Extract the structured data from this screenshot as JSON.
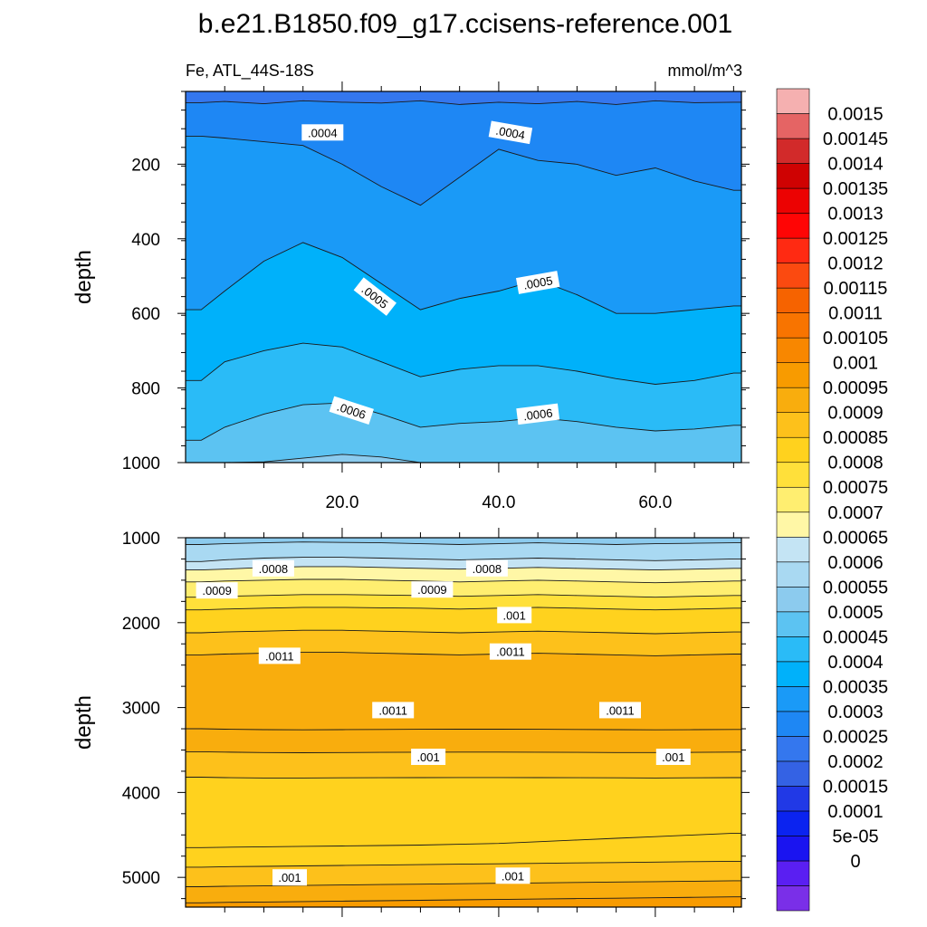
{
  "figure": {
    "title": "b.e21.B1850.f09_g17.ccisens-reference.001",
    "left_label": "Fe, ATL_44S-18S",
    "right_label": "mmol/m^3"
  },
  "colors": {
    "fill": [
      "#7a2fe8",
      "#5a1ff2",
      "#1a14f0",
      "#0b23f0",
      "#2139e6",
      "#3462e4",
      "#3477ee",
      "#1e87f4",
      "#1a9af7",
      "#00b1fa",
      "#2abbf7",
      "#5cc3f2",
      "#8ccbee",
      "#a9d9f2",
      "#c4e4f4",
      "#fff7a6",
      "#ffee70",
      "#ffe03a",
      "#ffd21e",
      "#fdc11b",
      "#f9ad0d",
      "#f89b00",
      "#f88700",
      "#f87400",
      "#f66300",
      "#fb4a10",
      "#ff2a12",
      "#ff0505",
      "#ec0202",
      "#cf0202",
      "#d22a2a",
      "#e56464",
      "#f5b0b0"
    ],
    "line": "#1a1a1a"
  },
  "chart_data": {
    "type": "heatmap",
    "style": "filled-contour",
    "x": [
      2,
      5,
      10,
      15,
      20,
      25,
      30,
      35,
      40,
      45,
      50,
      55,
      60,
      65,
      70
    ],
    "xlim": [
      0,
      71
    ],
    "colorbar": {
      "levels": [
        0,
        5e-05,
        0.0001,
        0.00015,
        0.0002,
        0.00025,
        0.0003,
        0.00035,
        0.0004,
        0.00045,
        0.0005,
        0.00055,
        0.0006,
        0.00065,
        0.0007,
        0.00075,
        0.0008,
        0.00085,
        0.0009,
        0.00095,
        0.001,
        0.00105,
        0.0011,
        0.00115,
        0.0012,
        0.00125,
        0.0013,
        0.00135,
        0.0014,
        0.00145,
        0.0015
      ],
      "labels": [
        "0.0015",
        "0.00145",
        "0.0014",
        "0.00135",
        "0.0013",
        "0.00125",
        "0.0012",
        "0.00115",
        "0.0011",
        "0.00105",
        "0.001",
        "0.00095",
        "0.0009",
        "0.00085",
        "0.0008",
        "0.00075",
        "0.0007",
        "0.00065",
        "0.0006",
        "0.00055",
        "0.0005",
        "0.00045",
        "0.0004",
        "0.00035",
        "0.0003",
        "0.00025",
        "0.0002",
        "0.00015",
        "0.0001",
        "5e-05",
        "0"
      ]
    },
    "panels": [
      {
        "ylabel": "depth",
        "ylim": [
          5,
          1000
        ],
        "yticks": [
          200,
          400,
          600,
          800,
          1000
        ],
        "xticks": [
          20,
          40,
          60
        ],
        "xtick_labels": [
          "20.0",
          "40.0",
          "60.0"
        ],
        "contours": [
          {
            "level": 0.00035,
            "depth": [
              35,
              32,
              38,
              30,
              34,
              36,
              30,
              40,
              34,
              38,
              32,
              40,
              30,
              35,
              34
            ]
          },
          {
            "level": 0.0004,
            "depth": [
              125,
              130,
              140,
              150,
              200,
              260,
              310,
              235,
              160,
              190,
              200,
              230,
              210,
              245,
              270
            ]
          },
          {
            "level": 0.00045,
            "depth": [
              590,
              540,
              460,
              410,
              450,
              520,
              590,
              560,
              540,
              510,
              550,
              600,
              600,
              590,
              580
            ]
          },
          {
            "level": 0.0005,
            "depth": [
              780,
              730,
              700,
              680,
              690,
              730,
              770,
              750,
              740,
              740,
              755,
              775,
              790,
              780,
              760
            ]
          },
          {
            "level": 0.00055,
            "depth": [
              940,
              905,
              870,
              845,
              840,
              870,
              905,
              895,
              890,
              880,
              890,
              905,
              915,
              910,
              900
            ]
          },
          {
            "level": 0.0006,
            "depth": [
              1000,
              1000,
              998,
              988,
              978,
              985,
              1000,
              1000,
              1000,
              1000,
              1000,
              1000,
              1000,
              1000,
              1000
            ]
          }
        ],
        "labels": [
          {
            "text": ".0004",
            "x": 17.5,
            "depth": 115,
            "angle": 0
          },
          {
            "text": ".0004",
            "x": 41.5,
            "depth": 115,
            "angle": 10
          },
          {
            "text": ".0005",
            "x": 24.2,
            "depth": 555,
            "angle": 38
          },
          {
            "text": ".0005",
            "x": 45.0,
            "depth": 517,
            "angle": -10
          },
          {
            "text": ".0006",
            "x": 21.2,
            "depth": 860,
            "angle": 18
          },
          {
            "text": ".0006",
            "x": 45.0,
            "depth": 870,
            "angle": -7
          }
        ]
      },
      {
        "ylabel": "depth",
        "ylim": [
          1000,
          5350
        ],
        "yticks": [
          1000,
          2000,
          3000,
          4000,
          5000
        ],
        "xticks": [
          20,
          40,
          60
        ],
        "xtick_labels": [],
        "contours": [
          {
            "level": 0.00065,
            "depth": [
              1080,
              1070,
              1060,
              1050,
              1055,
              1060,
              1070,
              1080,
              1070,
              1060,
              1070,
              1080,
              1070,
              1065,
              1060
            ]
          },
          {
            "level": 0.0007,
            "depth": [
              1280,
              1260,
              1240,
              1230,
              1230,
              1240,
              1250,
              1260,
              1250,
              1240,
              1250,
              1260,
              1270,
              1260,
              1250
            ]
          },
          {
            "level": 0.00075,
            "depth": [
              1380,
              1370,
              1350,
              1340,
              1340,
              1350,
              1360,
              1370,
              1360,
              1350,
              1360,
              1370,
              1380,
              1370,
              1360
            ]
          },
          {
            "level": 0.0008,
            "depth": [
              1520,
              1510,
              1500,
              1490,
              1490,
              1500,
              1510,
              1520,
              1510,
              1500,
              1510,
              1520,
              1530,
              1520,
              1510
            ]
          },
          {
            "level": 0.00085,
            "depth": [
              1700,
              1690,
              1680,
              1670,
              1670,
              1675,
              1680,
              1690,
              1680,
              1670,
              1680,
              1690,
              1700,
              1690,
              1680
            ]
          },
          {
            "level": 0.0009,
            "depth": [
              1850,
              1840,
              1830,
              1820,
              1820,
              1825,
              1830,
              1840,
              1830,
              1820,
              1830,
              1840,
              1850,
              1840,
              1830
            ]
          },
          {
            "level": 0.00095,
            "depth": [
              2120,
              2110,
              2100,
              2090,
              2090,
              2100,
              2110,
              2120,
              2110,
              2100,
              2110,
              2120,
              2130,
              2120,
              2110
            ]
          },
          {
            "level": 0.001,
            "depth": [
              2380,
              2370,
              2360,
              2350,
              2350,
              2360,
              2370,
              2380,
              2370,
              2360,
              2370,
              2380,
              2390,
              2380,
              2370
            ]
          },
          {
            "level": 0.00105,
            "depth": [
              3250,
              3255,
              3260,
              3262,
              3260,
              3258,
              3256,
              3255,
              3255,
              3256,
              3258,
              3260,
              3262,
              3260,
              3258
            ]
          },
          {
            "level": 0.001,
            "depth": [
              3520,
              3525,
              3530,
              3532,
              3530,
              3528,
              3526,
              3525,
              3525,
              3526,
              3528,
              3530,
              3530,
              3528,
              3525
            ]
          },
          {
            "level": 0.00095,
            "depth": [
              3820,
              3825,
              3830,
              3830,
              3828,
              3826,
              3825,
              3824,
              3824,
              3825,
              3826,
              3828,
              3830,
              3828,
              3825
            ]
          },
          {
            "level": 0.0009,
            "depth": [
              4650,
              4645,
              4640,
              4635,
              4630,
              4625,
              4620,
              4610,
              4600,
              4580,
              4560,
              4540,
              4520,
              4500,
              4480
            ]
          },
          {
            "level": 0.00095,
            "depth": [
              4880,
              4875,
              4870,
              4865,
              4860,
              4855,
              4850,
              4845,
              4840,
              4835,
              4830,
              4825,
              4820,
              4815,
              4810
            ]
          },
          {
            "level": 0.001,
            "depth": [
              5110,
              5105,
              5100,
              5095,
              5090,
              5085,
              5080,
              5075,
              5070,
              5065,
              5060,
              5055,
              5050,
              5045,
              5040
            ]
          },
          {
            "level": 0.00105,
            "depth": [
              5300,
              5295,
              5290,
              5285,
              5280,
              5275,
              5270,
              5265,
              5260,
              5255,
              5250,
              5245,
              5240,
              5235,
              5230
            ]
          }
        ],
        "labels": [
          {
            "text": ".0008",
            "x": 11.2,
            "depth": 1360,
            "angle": 0
          },
          {
            "text": ".0008",
            "x": 38.5,
            "depth": 1360,
            "angle": 0
          },
          {
            "text": ".0009",
            "x": 4.0,
            "depth": 1620,
            "angle": 0
          },
          {
            "text": ".0009",
            "x": 31.5,
            "depth": 1610,
            "angle": 0
          },
          {
            "text": ".001",
            "x": 42.0,
            "depth": 1910,
            "angle": 0
          },
          {
            "text": ".0011",
            "x": 12.0,
            "depth": 2390,
            "angle": 0
          },
          {
            "text": ".0011",
            "x": 41.5,
            "depth": 2340,
            "angle": 0
          },
          {
            "text": ".0011",
            "x": 26.5,
            "depth": 3030,
            "angle": 0
          },
          {
            "text": ".0011",
            "x": 55.5,
            "depth": 3030,
            "angle": 0
          },
          {
            "text": ".001",
            "x": 31.0,
            "depth": 3580,
            "angle": 0
          },
          {
            "text": ".001",
            "x": 62.3,
            "depth": 3580,
            "angle": 0
          },
          {
            "text": ".001",
            "x": 13.3,
            "depth": 5000,
            "angle": 0
          },
          {
            "text": ".001",
            "x": 41.8,
            "depth": 4980,
            "angle": 0
          }
        ]
      }
    ]
  }
}
